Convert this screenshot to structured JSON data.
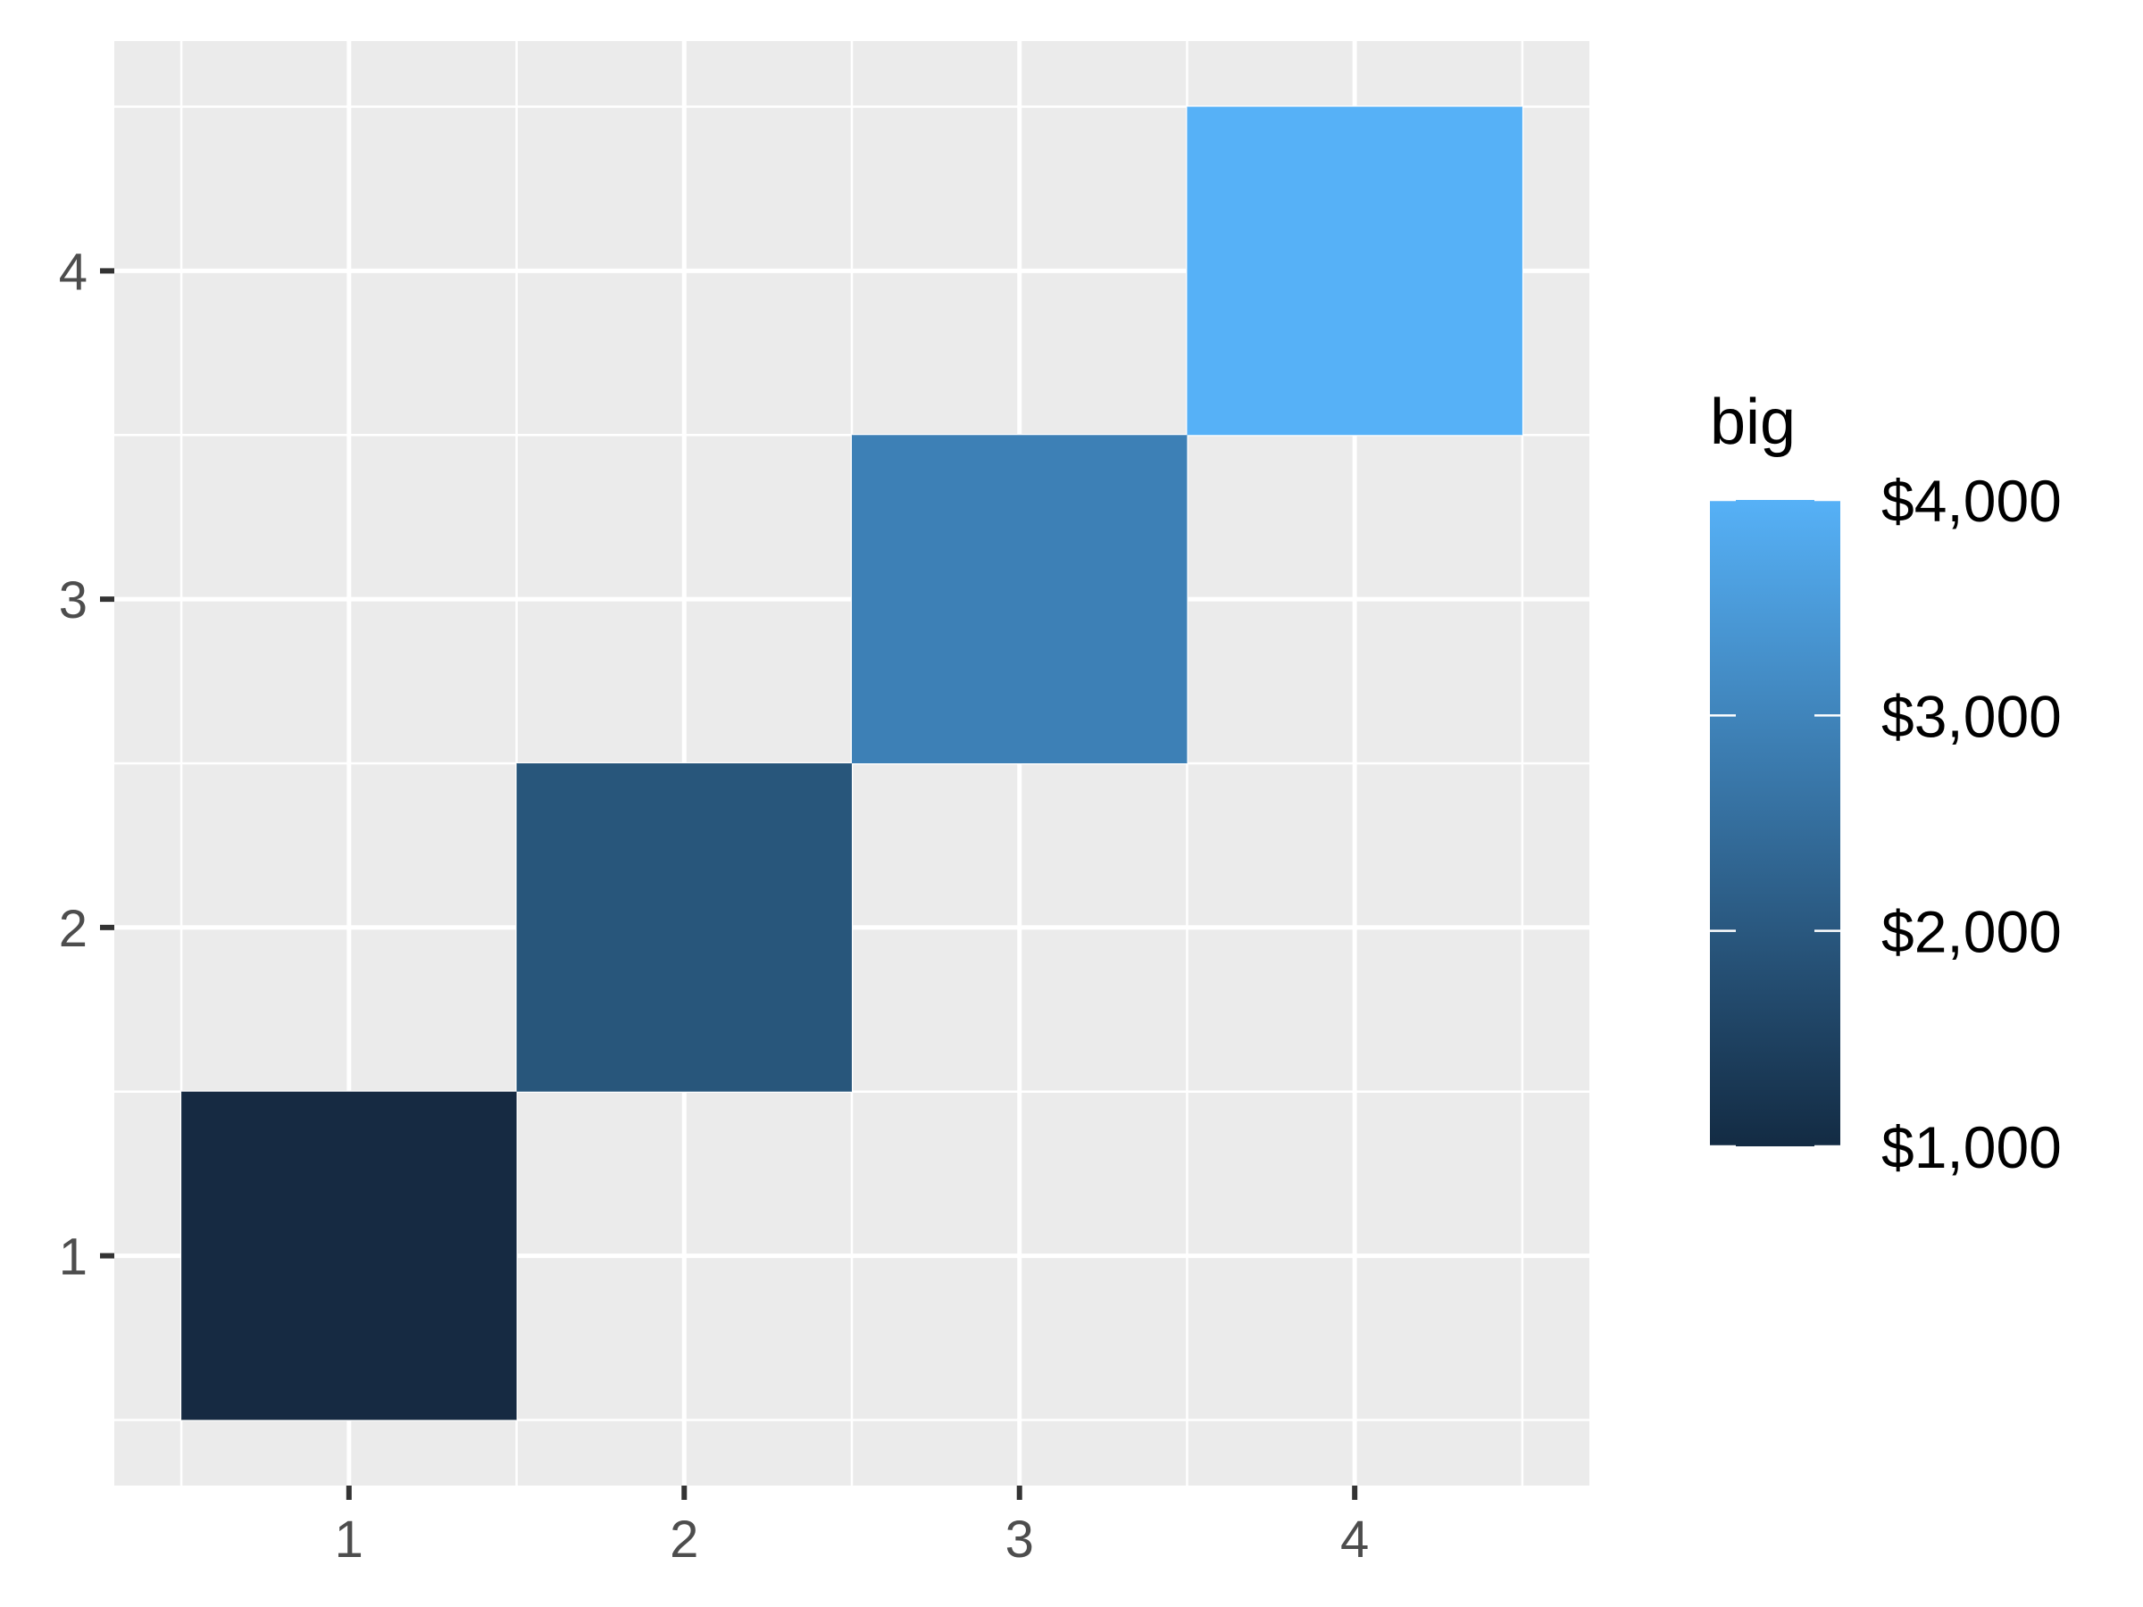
{
  "chart_data": {
    "type": "heatmap",
    "title": "",
    "xlabel": "",
    "ylabel": "",
    "x_ticks": [
      "1",
      "2",
      "3",
      "4"
    ],
    "y_ticks": [
      "1",
      "2",
      "3",
      "4"
    ],
    "xlim": [
      0.3,
      4.7
    ],
    "ylim": [
      0.3,
      4.7
    ],
    "grid": true,
    "panel_background": "#ebebeb",
    "cells": [
      {
        "x": 1,
        "y": 1,
        "value": 1000,
        "color": "#162a42"
      },
      {
        "x": 2,
        "y": 2,
        "value": 2000,
        "color": "#28567b"
      },
      {
        "x": 3,
        "y": 3,
        "value": 3000,
        "color": "#3d80b6"
      },
      {
        "x": 4,
        "y": 4,
        "value": 4000,
        "color": "#56b1f7"
      }
    ],
    "legend": {
      "title": "big",
      "position": "right",
      "range": [
        1000,
        4000
      ],
      "low_color": "#132b43",
      "high_color": "#56b1f7",
      "breaks": [
        {
          "value": 4000,
          "label": "$4,000"
        },
        {
          "value": 3000,
          "label": "$3,000"
        },
        {
          "value": 2000,
          "label": "$2,000"
        },
        {
          "value": 1000,
          "label": "$1,000"
        }
      ]
    }
  }
}
